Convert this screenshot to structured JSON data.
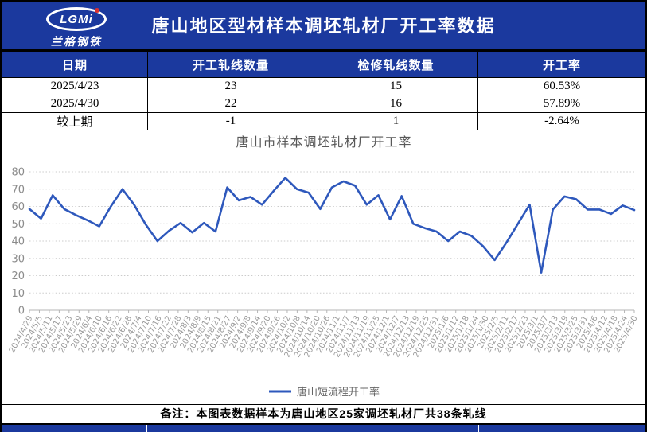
{
  "header": {
    "logo_text": "LGMi",
    "logo_subtext": "兰格钢铁",
    "title": "唐山地区型材样本调坯轧材厂开工率数据"
  },
  "table": {
    "columns": [
      "日期",
      "开工轧线数量",
      "检修轧线数量",
      "开工率"
    ],
    "rows": [
      [
        "2025/4/23",
        "23",
        "15",
        "60.53%"
      ],
      [
        "2025/4/30",
        "22",
        "16",
        "57.89%"
      ],
      [
        "较上期",
        "-1",
        "1",
        "-2.64%"
      ]
    ]
  },
  "chart_data": {
    "type": "line",
    "title": "唐山市样本调坯轧材厂开工率",
    "xlabel": "",
    "ylabel": "",
    "ylim": [
      0,
      80
    ],
    "yticks": [
      0,
      10,
      20,
      30,
      40,
      50,
      60,
      70,
      80
    ],
    "grid": "horizontal-dotted",
    "legend_position": "bottom",
    "x_labels": [
      "2024/4/29",
      "2024/5/5",
      "2024/5/11",
      "2024/5/17",
      "2024/5/23",
      "2024/5/29",
      "2024/6/4",
      "2024/6/10",
      "2024/6/16",
      "2024/6/22",
      "2024/6/28",
      "2024/7/4",
      "2024/7/10",
      "2024/7/16",
      "2024/7/22",
      "2024/7/28",
      "2024/8/3",
      "2024/8/9",
      "2024/8/15",
      "2024/8/21",
      "2024/8/27",
      "2024/9/2",
      "2024/9/8",
      "2024/9/14",
      "2024/9/20",
      "2024/9/26",
      "2024/10/2",
      "2024/10/8",
      "2024/10/14",
      "2024/10/20",
      "2024/10/26",
      "2024/11/1",
      "2024/11/7",
      "2024/11/13",
      "2024/11/19",
      "2024/11/25",
      "2024/12/1",
      "2024/12/7",
      "2024/12/13",
      "2024/12/19",
      "2024/12/25",
      "2024/12/31",
      "2025/1/6",
      "2025/1/12",
      "2025/1/18",
      "2025/1/24",
      "2025/1/30",
      "2025/2/5",
      "2025/2/11",
      "2025/2/17",
      "2025/2/23",
      "2025/3/1",
      "2025/3/7",
      "2025/3/13",
      "2025/3/19",
      "2025/3/25",
      "2025/3/31",
      "2025/4/6",
      "2025/4/12",
      "2025/4/18",
      "2025/4/24",
      "2025/4/30"
    ],
    "series": [
      {
        "name": "唐山短流程开工率",
        "color": "#2E58BC",
        "x": [
          "2024/5/1",
          "2024/5/8",
          "2024/5/15",
          "2024/5/22",
          "2024/5/29",
          "2024/6/5",
          "2024/6/12",
          "2024/6/19",
          "2024/6/26",
          "2024/7/3",
          "2024/7/10",
          "2024/7/17",
          "2024/7/24",
          "2024/7/31",
          "2024/8/7",
          "2024/8/14",
          "2024/8/21",
          "2024/8/28",
          "2024/9/4",
          "2024/9/11",
          "2024/9/18",
          "2024/9/25",
          "2024/10/2",
          "2024/10/9",
          "2024/10/16",
          "2024/10/23",
          "2024/10/30",
          "2024/11/6",
          "2024/11/13",
          "2024/11/20",
          "2024/11/27",
          "2024/12/4",
          "2024/12/11",
          "2024/12/18",
          "2024/12/25",
          "2025/1/1",
          "2025/1/8",
          "2025/1/15",
          "2025/1/22",
          "2025/1/29",
          "2025/2/5",
          "2025/2/12",
          "2025/2/19",
          "2025/2/26",
          "2025/3/5",
          "2025/3/12",
          "2025/3/19",
          "2025/3/26",
          "2025/4/2",
          "2025/4/9",
          "2025/4/16",
          "2025/4/23",
          "2025/4/30"
        ],
        "values": [
          58.5,
          53,
          66.5,
          58.5,
          55,
          52,
          48.5,
          60,
          70,
          61,
          49.5,
          40,
          46,
          50.5,
          45,
          50.5,
          45.5,
          71,
          63.5,
          65.5,
          61,
          69,
          76.5,
          70,
          68,
          58.5,
          71,
          74.5,
          72,
          61,
          66.5,
          52.5,
          66,
          50,
          47.5,
          45.5,
          40,
          45.5,
          43,
          37,
          29,
          39,
          50,
          61,
          21.8,
          58.2,
          65.8,
          64.2,
          58.2,
          58.2,
          55.7,
          60.53,
          57.89
        ]
      }
    ]
  },
  "footer": {
    "note": "备注：本图表数据样本为唐山地区25家调坯轧材厂共38条轧线"
  },
  "colors": {
    "band_blue": "#1B399E",
    "line_blue": "#2E58BC",
    "grid_gray": "#CBCBCB",
    "axis_text": "#8B8B8B",
    "chart_title_gray": "#595959",
    "logo_dot_red": "#D93030"
  }
}
